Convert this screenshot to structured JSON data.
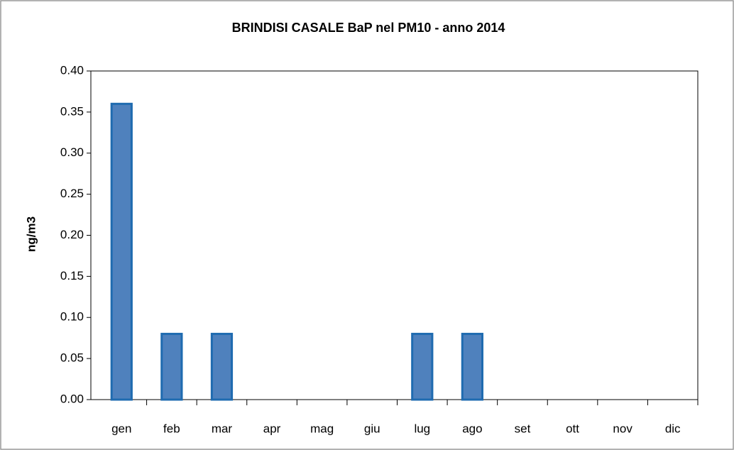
{
  "chart_data": {
    "type": "bar",
    "title": "BRINDISI CASALE BaP nel  PM10 - anno 2014",
    "y_label": "ng/m3",
    "categories": [
      "gen",
      "feb",
      "mar",
      "apr",
      "mag",
      "giu",
      "lug",
      "ago",
      "set",
      "ott",
      "nov",
      "dic"
    ],
    "values": [
      0.36,
      0.08,
      0.08,
      null,
      null,
      null,
      0.08,
      0.08,
      null,
      null,
      null,
      null
    ],
    "color": "#4f81bd",
    "ylim": [
      0,
      0.4
    ],
    "yticks": [
      {
        "value": 0,
        "label": "0.00"
      },
      {
        "value": 0.05,
        "label": "0.05"
      },
      {
        "value": 0.1,
        "label": "0.10"
      },
      {
        "value": 0.15,
        "label": "0.15"
      },
      {
        "value": 0.2,
        "label": "0.20"
      },
      {
        "value": 0.25,
        "label": "0.25"
      },
      {
        "value": 0.3,
        "label": "0.30"
      },
      {
        "value": 0.35,
        "label": "0.35"
      },
      {
        "value": 0.4,
        "label": "0.40"
      }
    ],
    "grid": false
  }
}
